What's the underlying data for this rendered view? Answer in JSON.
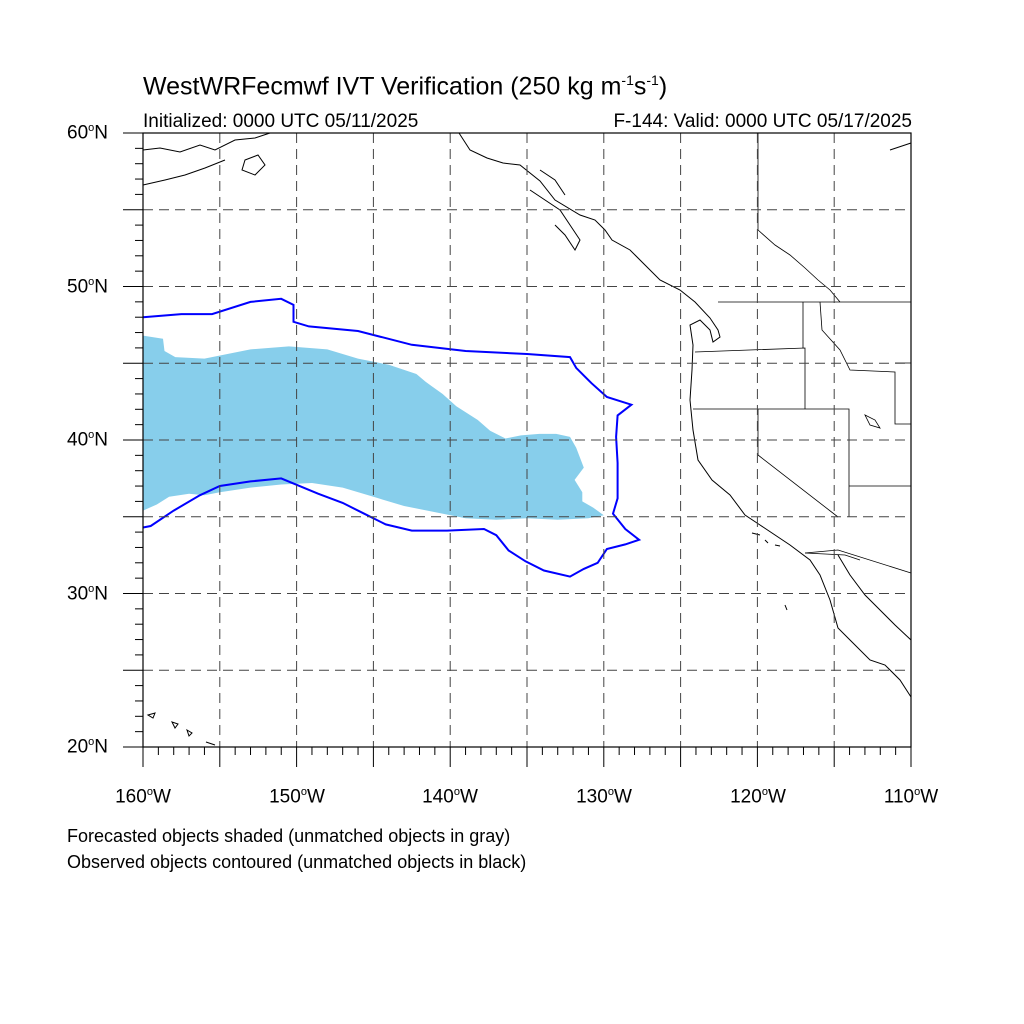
{
  "title": {
    "main": "WestWRFecmwf IVT Verification",
    "units_open": "(250 kg m",
    "units_exp1": "-1",
    "units_mid": "s",
    "units_exp2": "-1",
    "units_close": ")"
  },
  "subtitle_left": "Initialized: 0000 UTC 05/11/2025",
  "subtitle_right": "F-144: Valid: 0000 UTC 05/17/2025",
  "axes": {
    "lat_labels": [
      {
        "value": 60,
        "text": "60",
        "deg": "o",
        "hem": "N"
      },
      {
        "value": 50,
        "text": "50",
        "deg": "o",
        "hem": "N"
      },
      {
        "value": 40,
        "text": "40",
        "deg": "o",
        "hem": "N"
      },
      {
        "value": 30,
        "text": "30",
        "deg": "o",
        "hem": "N"
      },
      {
        "value": 20,
        "text": "20",
        "deg": "o",
        "hem": "N"
      }
    ],
    "lon_labels": [
      {
        "value": -160,
        "text": "160",
        "deg": "o",
        "hem": "W"
      },
      {
        "value": -150,
        "text": "150",
        "deg": "o",
        "hem": "W"
      },
      {
        "value": -140,
        "text": "140",
        "deg": "o",
        "hem": "W"
      },
      {
        "value": -130,
        "text": "130",
        "deg": "o",
        "hem": "W"
      },
      {
        "value": -120,
        "text": "120",
        "deg": "o",
        "hem": "W"
      },
      {
        "value": -110,
        "text": "110",
        "deg": "o",
        "hem": "W"
      }
    ],
    "lon_range": [
      -160,
      -110
    ],
    "lat_range": [
      20,
      60
    ],
    "grid_spacing_deg": 5,
    "grid_style": "dashed"
  },
  "legend_notes": [
    "Forecasted objects shaded (unmatched objects in gray)",
    "Observed objects contoured (unmatched objects in black)"
  ],
  "colors": {
    "forecast_fill": "#87ceeb",
    "observed_contour": "#0000ff",
    "coastline": "#000000",
    "grid": "#444444"
  },
  "objects": {
    "forecast_shaded": [
      [
        -160,
        46.8
      ],
      [
        -158.7,
        46.6
      ],
      [
        -158.6,
        45.8
      ],
      [
        -157.9,
        45.4
      ],
      [
        -156,
        45.3
      ],
      [
        -153,
        45.9
      ],
      [
        -150.5,
        46.1
      ],
      [
        -148,
        45.9
      ],
      [
        -146,
        45.3
      ],
      [
        -144,
        44.9
      ],
      [
        -142.2,
        44.3
      ],
      [
        -141.6,
        43.8
      ],
      [
        -141.2,
        43.5
      ],
      [
        -140.5,
        43
      ],
      [
        -139.6,
        42.2
      ],
      [
        -138.2,
        41.3
      ],
      [
        -137.4,
        40.6
      ],
      [
        -136.4,
        40.1
      ],
      [
        -135.4,
        40.3
      ],
      [
        -134.2,
        40.4
      ],
      [
        -133.1,
        40.4
      ],
      [
        -132.2,
        40.2
      ],
      [
        -131.8,
        39.5
      ],
      [
        -131.3,
        38.2
      ],
      [
        -131.9,
        37.4
      ],
      [
        -131.4,
        36.6
      ],
      [
        -131.4,
        36
      ],
      [
        -130.7,
        35.6
      ],
      [
        -130,
        35.1
      ],
      [
        -131,
        34.9
      ],
      [
        -133,
        34.8
      ],
      [
        -135,
        34.9
      ],
      [
        -137,
        34.8
      ],
      [
        -139,
        34.9
      ],
      [
        -141,
        35.3
      ],
      [
        -143,
        35.7
      ],
      [
        -145,
        36.3
      ],
      [
        -147,
        36.9
      ],
      [
        -149,
        37.2
      ],
      [
        -151,
        37.1
      ],
      [
        -153,
        36.9
      ],
      [
        -155,
        36.6
      ],
      [
        -156,
        36.4
      ],
      [
        -157,
        36.5
      ],
      [
        -158.3,
        36.3
      ],
      [
        -159.1,
        35.8
      ],
      [
        -160,
        35.4
      ]
    ],
    "observed_contour": [
      [
        -160,
        48
      ],
      [
        -157.5,
        48.2
      ],
      [
        -155.5,
        48.2
      ],
      [
        -153,
        49
      ],
      [
        -151,
        49.2
      ],
      [
        -150.2,
        48.8
      ],
      [
        -150.2,
        47.7
      ],
      [
        -149.2,
        47.4
      ],
      [
        -146,
        47.1
      ],
      [
        -142.5,
        46.2
      ],
      [
        -139,
        45.8
      ],
      [
        -135,
        45.6
      ],
      [
        -132.2,
        45.4
      ],
      [
        -131.8,
        44.7
      ],
      [
        -130.8,
        43.7
      ],
      [
        -129.8,
        42.8
      ],
      [
        -128.2,
        42.3
      ],
      [
        -129.1,
        41.6
      ],
      [
        -129.2,
        40.2
      ],
      [
        -129.1,
        38.5
      ],
      [
        -129.1,
        36.2
      ],
      [
        -129.4,
        35.2
      ],
      [
        -128.6,
        34.2
      ],
      [
        -127.7,
        33.5
      ],
      [
        -128.6,
        33.2
      ],
      [
        -129.8,
        32.9
      ],
      [
        -130.4,
        32
      ],
      [
        -131.3,
        31.6
      ],
      [
        -132.2,
        31.1
      ],
      [
        -133.9,
        31.5
      ],
      [
        -135.1,
        32.1
      ],
      [
        -136.2,
        32.8
      ],
      [
        -137,
        33.8
      ],
      [
        -137.8,
        34.2
      ],
      [
        -140.2,
        34.1
      ],
      [
        -142.5,
        34.1
      ],
      [
        -144.2,
        34.5
      ],
      [
        -145.6,
        35.2
      ],
      [
        -147,
        35.9
      ],
      [
        -148.6,
        36.5
      ],
      [
        -151,
        37.5
      ],
      [
        -153,
        37.3
      ],
      [
        -155,
        37
      ],
      [
        -156.3,
        36.4
      ],
      [
        -158,
        35.4
      ],
      [
        -159.5,
        34.4
      ],
      [
        -160,
        34.3
      ]
    ]
  }
}
